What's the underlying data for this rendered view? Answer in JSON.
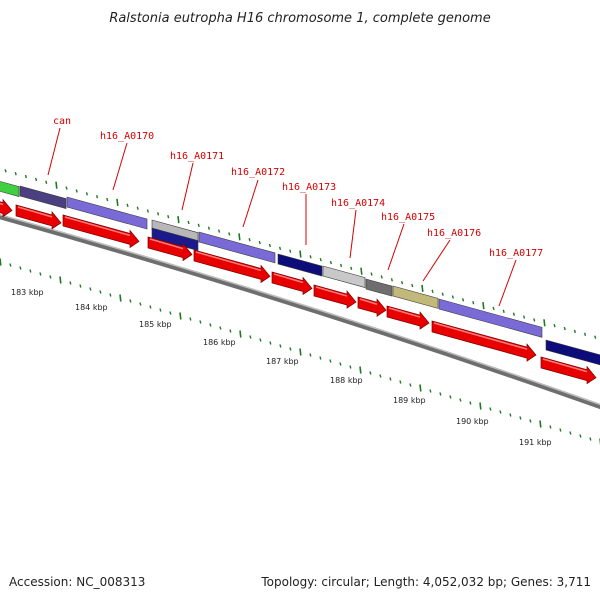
{
  "title": "Ralstonia eutropha H16 chromosome 1, complete genome",
  "footer": {
    "accession": "Accession: NC_008313",
    "topology": "Topology: circular; Length: 4,052,032 bp; Genes: 3,711"
  },
  "colors": {
    "backbone": "#8c8c8c",
    "cds_arrow": "#e80000",
    "label": "#d40000",
    "tick": "#1f7a1f"
  },
  "gene_labels": [
    "can",
    "h16_A0170",
    "h16_A0171",
    "h16_A0172",
    "h16_A0173",
    "h16_A0174",
    "h16_A0175",
    "h16_A0176",
    "h16_A0177"
  ],
  "kbp_labels": [
    "183 kbp",
    "184 kbp",
    "185 kbp",
    "186 kbp",
    "187 kbp",
    "188 kbp",
    "189 kbp",
    "190 kbp",
    "191 kbp"
  ]
}
